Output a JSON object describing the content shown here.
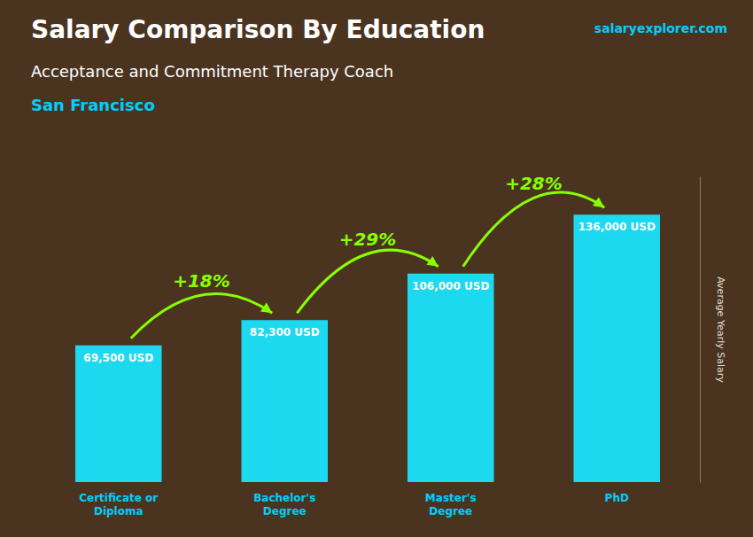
{
  "chart_data": {
    "type": "bar",
    "title": "Salary Comparison By Education",
    "subtitle": [
      "Acceptance and Commitment Therapy Coach",
      "San Francisco"
    ],
    "watermark": "salaryexplorer.com",
    "ylabel": "Average Yearly Salary",
    "categories": [
      "Certificate or\nDiploma",
      "Bachelor's\nDegree",
      "Master's\nDegree",
      "PhD"
    ],
    "values": [
      69500,
      82300,
      106000,
      136000
    ],
    "value_labels": [
      "69,500 USD",
      "82,300 USD",
      "106,000 USD",
      "136,000 USD"
    ],
    "data_labels": true,
    "annotations": [
      "+18%",
      "+29%",
      "+28%"
    ],
    "color": "#1dd9f0",
    "ylim": [
      0,
      155000
    ],
    "tick_labels": "x",
    "grid": false
  }
}
